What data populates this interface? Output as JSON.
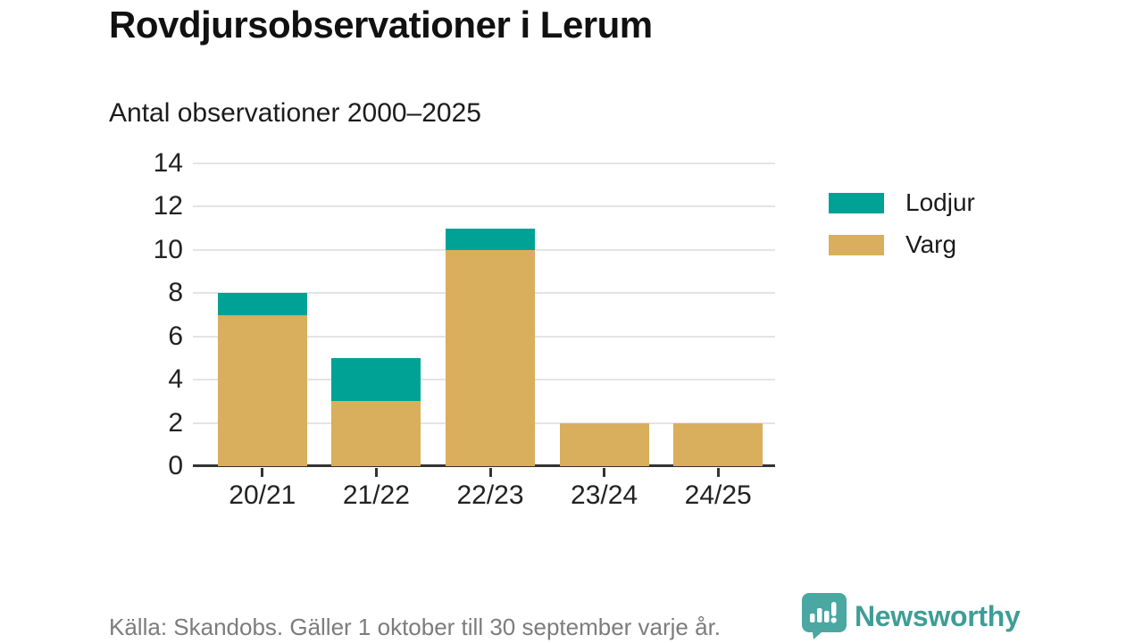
{
  "header": {
    "title": "Rovdjursobservationer i Lerum",
    "subtitle": "Antal observationer 2000–2025"
  },
  "chart_data": {
    "type": "bar",
    "stacked": true,
    "title": "Rovdjursobservationer i Lerum",
    "subtitle": "Antal observationer 2000–2025",
    "categories": [
      "20/21",
      "21/22",
      "22/23",
      "23/24",
      "24/25"
    ],
    "series": [
      {
        "name": "Varg",
        "color": "#d9ae5c",
        "values": [
          7,
          3,
          10,
          2,
          2
        ]
      },
      {
        "name": "Lodjur",
        "color": "#00a296",
        "values": [
          1,
          2,
          1,
          0,
          0
        ]
      }
    ],
    "totals": [
      8,
      5,
      11,
      2,
      2
    ],
    "xlabel": "",
    "ylabel": "",
    "ylim": [
      0,
      14
    ],
    "yticks": [
      0,
      2,
      4,
      6,
      8,
      10,
      12,
      14
    ],
    "grid": true,
    "legend_position": "right",
    "legend": [
      {
        "label": "Lodjur",
        "color": "#00a296"
      },
      {
        "label": "Varg",
        "color": "#d9ae5c"
      }
    ]
  },
  "footer": {
    "source": "Källa: Skandobs. Gäller 1 oktober till 30 september varje år.",
    "brand": "Newsworthy"
  },
  "colors": {
    "teal": "#00a296",
    "gold": "#d9ae5c",
    "brand_teal": "#3f9d97",
    "logo_bubble": "#4aa7a1",
    "grid": "#e4e4e4",
    "axis": "#333333",
    "muted_text": "#7c7c7c"
  }
}
